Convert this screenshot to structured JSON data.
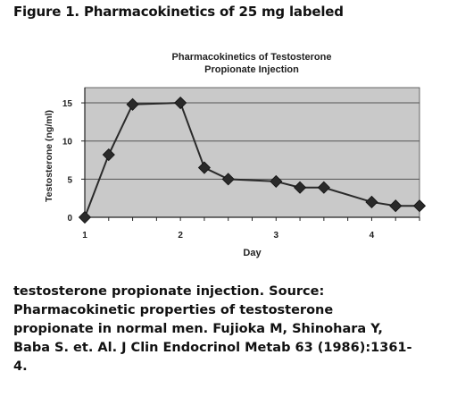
{
  "figure_heading": "Figure 1. Pharmacokinetics of 25 mg labeled",
  "caption_lines": [
    "testosterone propionate injection. Source:",
    "Pharmacokinetic properties of testosterone",
    "propionate in normal men.  Fujioka M, Shinohara Y,",
    "Baba S. et. Al. J Clin Endocrinol Metab 63 (1986):1361-",
    "4."
  ],
  "chart_data": {
    "type": "line",
    "title_lines": [
      "Pharmacokinetics of Testosterone",
      "Propionate Injection"
    ],
    "xlabel": "Day",
    "ylabel": "Testosterone (ng/ml)",
    "xlim": [
      1,
      4.5
    ],
    "ylim": [
      0,
      17
    ],
    "xticks": [
      1,
      2,
      3,
      4
    ],
    "yticks": [
      0,
      5,
      10,
      15
    ],
    "grid": true,
    "legend": "none",
    "series": [
      {
        "x": [
          1,
          1.25,
          1.5,
          2,
          2.25,
          2.5,
          3,
          3.25,
          3.5,
          4,
          4.25,
          4.5
        ],
        "y": [
          0,
          8.2,
          14.8,
          15,
          6.5,
          5,
          4.7,
          3.9,
          3.9,
          2,
          1.5,
          1.5
        ]
      }
    ],
    "colors": {
      "plot_background": "#c9c9c9",
      "line": "#2a2a2a",
      "marker": "#2a2a2a",
      "grid": "#555555"
    }
  }
}
